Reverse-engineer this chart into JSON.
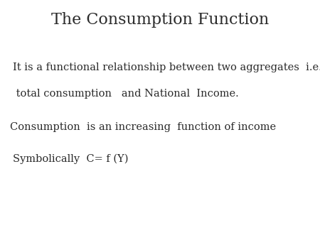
{
  "title": "The Consumption Function",
  "title_fontsize": 16,
  "title_color": "#2a2a2a",
  "background_color": "#ffffff",
  "line1": "It is a functional relationship between two aggregates  i.e.,",
  "line2": " total consumption   and National  Income.",
  "line3": "Consumption  is an increasing  function of income",
  "line4": "Symbolically  C= f (Y)",
  "body_fontsize": 10.5,
  "body_color": "#2a2a2a",
  "font_family": "DejaVu Serif"
}
